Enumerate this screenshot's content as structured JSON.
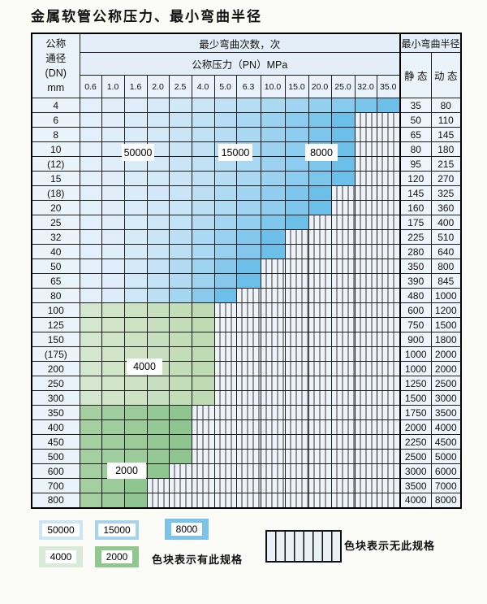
{
  "title": "金属软管公称压力、最小弯曲半径",
  "table": {
    "corner_header": "公称\n通径\n(DN)\nmm",
    "bend_cycles_header": "最少弯曲次数，次",
    "pressure_header": "公称压力（PN）MPa",
    "radius_header": "最小弯曲半径",
    "static_label": "静 态",
    "dynamic_label": "动 态",
    "pressure_ticks": [
      "0.6",
      "1.0",
      "1.6",
      "2.0",
      "2.5",
      "4.0",
      "5.0",
      "6.3",
      "10.0",
      "15.0",
      "20.0",
      "25.0",
      "32.0",
      "35.0"
    ],
    "rows": [
      {
        "dn": "4",
        "spec_through": 13,
        "zone": "blue",
        "static": "35",
        "dynamic": "80"
      },
      {
        "dn": "6",
        "spec_through": 11,
        "zone": "blue",
        "static": "50",
        "dynamic": "110"
      },
      {
        "dn": "8",
        "spec_through": 11,
        "zone": "blue",
        "static": "65",
        "dynamic": "145"
      },
      {
        "dn": "10",
        "spec_through": 11,
        "zone": "blue",
        "static": "80",
        "dynamic": "180"
      },
      {
        "dn": "(12)",
        "spec_through": 11,
        "zone": "blue",
        "static": "95",
        "dynamic": "215"
      },
      {
        "dn": "15",
        "spec_through": 11,
        "zone": "blue",
        "static": "120",
        "dynamic": "270"
      },
      {
        "dn": "(18)",
        "spec_through": 10,
        "zone": "blue",
        "static": "145",
        "dynamic": "325"
      },
      {
        "dn": "20",
        "spec_through": 10,
        "zone": "blue",
        "static": "160",
        "dynamic": "360"
      },
      {
        "dn": "25",
        "spec_through": 9,
        "zone": "blue",
        "static": "175",
        "dynamic": "400"
      },
      {
        "dn": "32",
        "spec_through": 8,
        "zone": "blue",
        "static": "225",
        "dynamic": "510"
      },
      {
        "dn": "40",
        "spec_through": 8,
        "zone": "blue",
        "static": "280",
        "dynamic": "640"
      },
      {
        "dn": "50",
        "spec_through": 7,
        "zone": "blue",
        "static": "350",
        "dynamic": "800"
      },
      {
        "dn": "65",
        "spec_through": 7,
        "zone": "blue",
        "static": "390",
        "dynamic": "845"
      },
      {
        "dn": "80",
        "spec_through": 6,
        "zone": "blue",
        "static": "480",
        "dynamic": "1000"
      },
      {
        "dn": "100",
        "spec_through": 5,
        "zone": "greenA",
        "static": "600",
        "dynamic": "1200"
      },
      {
        "dn": "125",
        "spec_through": 5,
        "zone": "greenA",
        "static": "750",
        "dynamic": "1500"
      },
      {
        "dn": "150",
        "spec_through": 5,
        "zone": "greenA",
        "static": "900",
        "dynamic": "1800"
      },
      {
        "dn": "(175)",
        "spec_through": 5,
        "zone": "greenA",
        "static": "1000",
        "dynamic": "2000"
      },
      {
        "dn": "200",
        "spec_through": 5,
        "zone": "greenA",
        "static": "1000",
        "dynamic": "2000"
      },
      {
        "dn": "250",
        "spec_through": 5,
        "zone": "greenA",
        "static": "1250",
        "dynamic": "2500"
      },
      {
        "dn": "300",
        "spec_through": 5,
        "zone": "greenA",
        "static": "1500",
        "dynamic": "3000"
      },
      {
        "dn": "350",
        "spec_through": 4,
        "zone": "greenB",
        "static": "1750",
        "dynamic": "3500"
      },
      {
        "dn": "400",
        "spec_through": 4,
        "zone": "greenB",
        "static": "2000",
        "dynamic": "4000"
      },
      {
        "dn": "450",
        "spec_through": 4,
        "zone": "greenB",
        "static": "2250",
        "dynamic": "4500"
      },
      {
        "dn": "500",
        "spec_through": 4,
        "zone": "greenB",
        "static": "2500",
        "dynamic": "5000"
      },
      {
        "dn": "600",
        "spec_through": 3,
        "zone": "greenB",
        "static": "3000",
        "dynamic": "6000"
      },
      {
        "dn": "700",
        "spec_through": 2,
        "zone": "greenB",
        "static": "3500",
        "dynamic": "7000"
      },
      {
        "dn": "800",
        "spec_through": 2,
        "zone": "greenB",
        "static": "4000",
        "dynamic": "8000"
      }
    ]
  },
  "zone_labels": {
    "cycles_50000": "50000",
    "cycles_15000": "15000",
    "cycles_8000": "8000",
    "cycles_4000": "4000",
    "cycles_2000": "2000"
  },
  "legend": {
    "chip_50000": "50000",
    "chip_15000": "15000",
    "chip_8000": "8000",
    "chip_4000": "4000",
    "chip_2000": "2000",
    "has_spec_text": "色块表示有此规格",
    "no_spec_text": "色块表示无此规格"
  },
  "colors": {
    "cycles_50000": "#cde5f4",
    "cycles_15000": "#a6d4ef",
    "cycles_8000": "#7cc3ea",
    "cycles_4000": "#d8ebd8",
    "cycles_2000": "#8fc78f",
    "blue_light": "#e3effa",
    "blue_dark": "#6cbfe9",
    "greenA_light": "#d4e6cd",
    "greenA_dark": "#bfdbb4",
    "greenB_light": "#a5cfa1",
    "greenB_dark": "#8fc690"
  }
}
